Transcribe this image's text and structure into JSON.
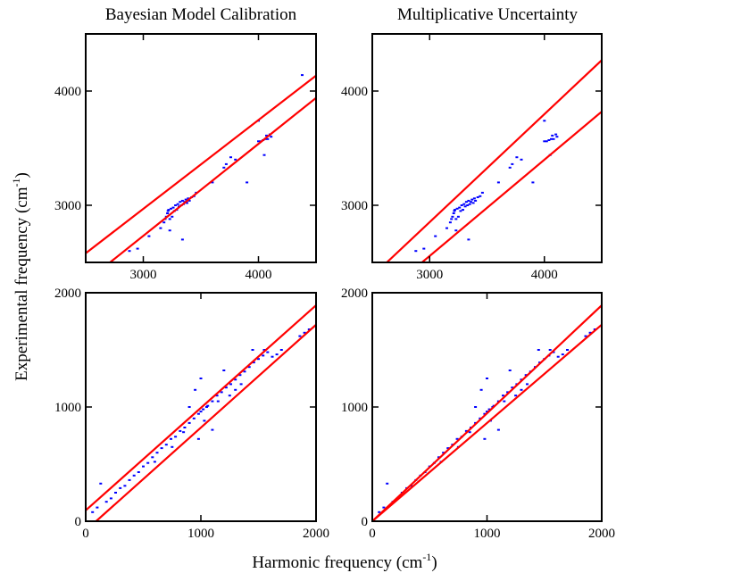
{
  "figure": {
    "column_titles": [
      "Bayesian Model Calibration",
      "Multiplicative Uncertainty"
    ],
    "xlabel": {
      "text": "Harmonic frequency (cm",
      "sup": "-1",
      "close": ")"
    },
    "ylabel": {
      "text": "Experimental frequency (cm",
      "sup": "-1",
      "close": ")"
    }
  },
  "colors": {
    "band": "#ff0000",
    "points": "#0000ff",
    "axes": "#000000"
  },
  "chart_data": [
    {
      "type": "scatter",
      "panel": "top-left",
      "method": "Bayesian Model Calibration",
      "xlim": [
        2500,
        4500
      ],
      "ylim": [
        2500,
        4500
      ],
      "xticks": [
        3000,
        4000
      ],
      "yticks": [
        3000,
        4000
      ],
      "xtick_labels": [
        "3000",
        "4000"
      ],
      "ytick_labels": [
        "3000",
        "4000"
      ],
      "bands": [
        {
          "name": "upper",
          "x": [
            2500,
            4500
          ],
          "y": [
            2580,
            4135
          ]
        },
        {
          "name": "lower",
          "x": [
            2500,
            4500
          ],
          "y": [
            2330,
            3940
          ]
        }
      ],
      "points": [
        [
          2880,
          2600
        ],
        [
          2950,
          2620
        ],
        [
          3050,
          2730
        ],
        [
          3150,
          2800
        ],
        [
          3180,
          2850
        ],
        [
          3190,
          2880
        ],
        [
          3200,
          2900
        ],
        [
          3210,
          2930
        ],
        [
          3215,
          2950
        ],
        [
          3220,
          2960
        ],
        [
          3230,
          2880
        ],
        [
          3240,
          2970
        ],
        [
          3250,
          2900
        ],
        [
          3260,
          2980
        ],
        [
          3270,
          2950
        ],
        [
          3280,
          3000
        ],
        [
          3290,
          2960
        ],
        [
          3300,
          3010
        ],
        [
          3310,
          2990
        ],
        [
          3320,
          3030
        ],
        [
          3330,
          3000
        ],
        [
          3340,
          3040
        ],
        [
          3350,
          3010
        ],
        [
          3360,
          3030
        ],
        [
          3370,
          3050
        ],
        [
          3380,
          3020
        ],
        [
          3390,
          3060
        ],
        [
          3400,
          3040
        ],
        [
          3420,
          3070
        ],
        [
          3440,
          3080
        ],
        [
          3460,
          3110
        ],
        [
          3230,
          2780
        ],
        [
          3340,
          2700
        ],
        [
          3600,
          3200
        ],
        [
          3700,
          3330
        ],
        [
          3720,
          3360
        ],
        [
          3760,
          3420
        ],
        [
          3800,
          3400
        ],
        [
          3900,
          3200
        ],
        [
          4000,
          3560
        ],
        [
          4020,
          3560
        ],
        [
          4040,
          3570
        ],
        [
          4060,
          3580
        ],
        [
          4070,
          3610
        ],
        [
          4080,
          3580
        ],
        [
          4100,
          3620
        ],
        [
          4110,
          3600
        ],
        [
          4000,
          3740
        ],
        [
          4050,
          3440
        ],
        [
          4380,
          4140
        ]
      ]
    },
    {
      "type": "scatter",
      "panel": "top-right",
      "method": "Multiplicative Uncertainty",
      "xlim": [
        2500,
        4500
      ],
      "ylim": [
        2500,
        4500
      ],
      "xticks": [
        3000,
        4000
      ],
      "yticks": [
        3000,
        4000
      ],
      "xtick_labels": [
        "3000",
        "4000"
      ],
      "ytick_labels": [
        "3000",
        "4000"
      ],
      "bands": [
        {
          "name": "upper",
          "x": [
            2500,
            4500
          ],
          "y": [
            2380,
            4270
          ]
        },
        {
          "name": "lower",
          "x": [
            2500,
            4500
          ],
          "y": [
            2135,
            3820
          ]
        }
      ],
      "points": [
        [
          2880,
          2600
        ],
        [
          2950,
          2620
        ],
        [
          3050,
          2730
        ],
        [
          3150,
          2800
        ],
        [
          3180,
          2850
        ],
        [
          3190,
          2880
        ],
        [
          3200,
          2900
        ],
        [
          3210,
          2930
        ],
        [
          3215,
          2950
        ],
        [
          3220,
          2960
        ],
        [
          3230,
          2880
        ],
        [
          3240,
          2970
        ],
        [
          3250,
          2900
        ],
        [
          3260,
          2980
        ],
        [
          3270,
          2950
        ],
        [
          3280,
          3000
        ],
        [
          3290,
          2960
        ],
        [
          3300,
          3010
        ],
        [
          3310,
          2990
        ],
        [
          3320,
          3030
        ],
        [
          3330,
          3000
        ],
        [
          3340,
          3040
        ],
        [
          3350,
          3010
        ],
        [
          3360,
          3030
        ],
        [
          3370,
          3050
        ],
        [
          3380,
          3020
        ],
        [
          3390,
          3060
        ],
        [
          3400,
          3040
        ],
        [
          3420,
          3070
        ],
        [
          3440,
          3080
        ],
        [
          3460,
          3110
        ],
        [
          3230,
          2780
        ],
        [
          3340,
          2700
        ],
        [
          3600,
          3200
        ],
        [
          3700,
          3330
        ],
        [
          3720,
          3360
        ],
        [
          3760,
          3420
        ],
        [
          3800,
          3400
        ],
        [
          3900,
          3200
        ],
        [
          4000,
          3560
        ],
        [
          4020,
          3560
        ],
        [
          4040,
          3570
        ],
        [
          4060,
          3580
        ],
        [
          4070,
          3610
        ],
        [
          4080,
          3580
        ],
        [
          4100,
          3620
        ],
        [
          4110,
          3600
        ],
        [
          4000,
          3740
        ],
        [
          4050,
          3440
        ]
      ]
    },
    {
      "type": "scatter",
      "panel": "bottom-left",
      "method": "Bayesian Model Calibration",
      "xlim": [
        0,
        2000
      ],
      "ylim": [
        0,
        2000
      ],
      "xticks": [
        0,
        1000,
        2000
      ],
      "yticks": [
        0,
        1000,
        2000
      ],
      "xtick_labels": [
        "0",
        "1000",
        "2000"
      ],
      "ytick_labels": [
        "0",
        "1000",
        "2000"
      ],
      "bands": [
        {
          "name": "upper",
          "x": [
            0,
            2000
          ],
          "y": [
            95,
            1890
          ]
        },
        {
          "name": "lower",
          "x": [
            90,
            2000
          ],
          "y": [
            0,
            1720
          ]
        }
      ],
      "points": [
        [
          60,
          80
        ],
        [
          100,
          120
        ],
        [
          130,
          330
        ],
        [
          180,
          170
        ],
        [
          220,
          200
        ],
        [
          260,
          250
        ],
        [
          300,
          290
        ],
        [
          340,
          310
        ],
        [
          380,
          360
        ],
        [
          420,
          400
        ],
        [
          460,
          430
        ],
        [
          500,
          480
        ],
        [
          540,
          510
        ],
        [
          580,
          560
        ],
        [
          620,
          600
        ],
        [
          660,
          640
        ],
        [
          700,
          670
        ],
        [
          740,
          720
        ],
        [
          780,
          740
        ],
        [
          820,
          790
        ],
        [
          860,
          820
        ],
        [
          900,
          860
        ],
        [
          940,
          900
        ],
        [
          980,
          940
        ],
        [
          1000,
          960
        ],
        [
          1020,
          980
        ],
        [
          1060,
          1010
        ],
        [
          1100,
          1050
        ],
        [
          1140,
          1100
        ],
        [
          1180,
          1130
        ],
        [
          1220,
          1170
        ],
        [
          1260,
          1200
        ],
        [
          1300,
          1240
        ],
        [
          1340,
          1280
        ],
        [
          1380,
          1310
        ],
        [
          1420,
          1350
        ],
        [
          1460,
          1390
        ],
        [
          1500,
          1420
        ],
        [
          1540,
          1450
        ],
        [
          1580,
          1480
        ],
        [
          1620,
          1440
        ],
        [
          1660,
          1460
        ],
        [
          1700,
          1500
        ],
        [
          1860,
          1620
        ],
        [
          1900,
          1650
        ],
        [
          1940,
          1680
        ],
        [
          950,
          1150
        ],
        [
          1000,
          1250
        ],
        [
          900,
          1000
        ],
        [
          1100,
          800
        ],
        [
          1150,
          1050
        ],
        [
          1200,
          1320
        ],
        [
          1250,
          1100
        ],
        [
          1300,
          1150
        ],
        [
          1050,
          1000
        ],
        [
          850,
          780
        ],
        [
          750,
          650
        ],
        [
          600,
          520
        ],
        [
          1350,
          1200
        ],
        [
          1450,
          1500
        ],
        [
          1550,
          1500
        ],
        [
          980,
          720
        ],
        [
          1030,
          880
        ]
      ]
    },
    {
      "type": "scatter",
      "panel": "bottom-right",
      "method": "Multiplicative Uncertainty",
      "xlim": [
        0,
        2000
      ],
      "ylim": [
        0,
        2000
      ],
      "xticks": [
        0,
        1000,
        2000
      ],
      "yticks": [
        0,
        1000,
        2000
      ],
      "xtick_labels": [
        "0",
        "1000",
        "2000"
      ],
      "ytick_labels": [
        "0",
        "1000",
        "2000"
      ],
      "bands": [
        {
          "name": "upper",
          "x": [
            0,
            2000
          ],
          "y": [
            0,
            1890
          ]
        },
        {
          "name": "lower",
          "x": [
            0,
            2000
          ],
          "y": [
            0,
            1720
          ]
        }
      ],
      "points": [
        [
          60,
          80
        ],
        [
          100,
          120
        ],
        [
          130,
          330
        ],
        [
          180,
          170
        ],
        [
          220,
          200
        ],
        [
          260,
          250
        ],
        [
          300,
          290
        ],
        [
          340,
          310
        ],
        [
          380,
          360
        ],
        [
          420,
          400
        ],
        [
          460,
          430
        ],
        [
          500,
          480
        ],
        [
          540,
          510
        ],
        [
          580,
          560
        ],
        [
          620,
          600
        ],
        [
          660,
          640
        ],
        [
          700,
          670
        ],
        [
          740,
          720
        ],
        [
          780,
          740
        ],
        [
          820,
          790
        ],
        [
          860,
          820
        ],
        [
          900,
          860
        ],
        [
          940,
          900
        ],
        [
          980,
          940
        ],
        [
          1000,
          960
        ],
        [
          1020,
          980
        ],
        [
          1060,
          1010
        ],
        [
          1100,
          1050
        ],
        [
          1140,
          1100
        ],
        [
          1180,
          1130
        ],
        [
          1220,
          1170
        ],
        [
          1260,
          1200
        ],
        [
          1300,
          1240
        ],
        [
          1340,
          1280
        ],
        [
          1380,
          1310
        ],
        [
          1420,
          1350
        ],
        [
          1460,
          1390
        ],
        [
          1500,
          1420
        ],
        [
          1540,
          1450
        ],
        [
          1580,
          1480
        ],
        [
          1620,
          1440
        ],
        [
          1660,
          1460
        ],
        [
          1700,
          1500
        ],
        [
          1860,
          1620
        ],
        [
          1900,
          1650
        ],
        [
          1940,
          1680
        ],
        [
          950,
          1150
        ],
        [
          1000,
          1250
        ],
        [
          900,
          1000
        ],
        [
          1100,
          800
        ],
        [
          1150,
          1050
        ],
        [
          1200,
          1320
        ],
        [
          1250,
          1100
        ],
        [
          1300,
          1150
        ],
        [
          1050,
          1000
        ],
        [
          850,
          780
        ],
        [
          750,
          650
        ],
        [
          600,
          520
        ],
        [
          1350,
          1200
        ],
        [
          1450,
          1500
        ],
        [
          1550,
          1500
        ],
        [
          980,
          720
        ],
        [
          1030,
          880
        ]
      ]
    }
  ]
}
